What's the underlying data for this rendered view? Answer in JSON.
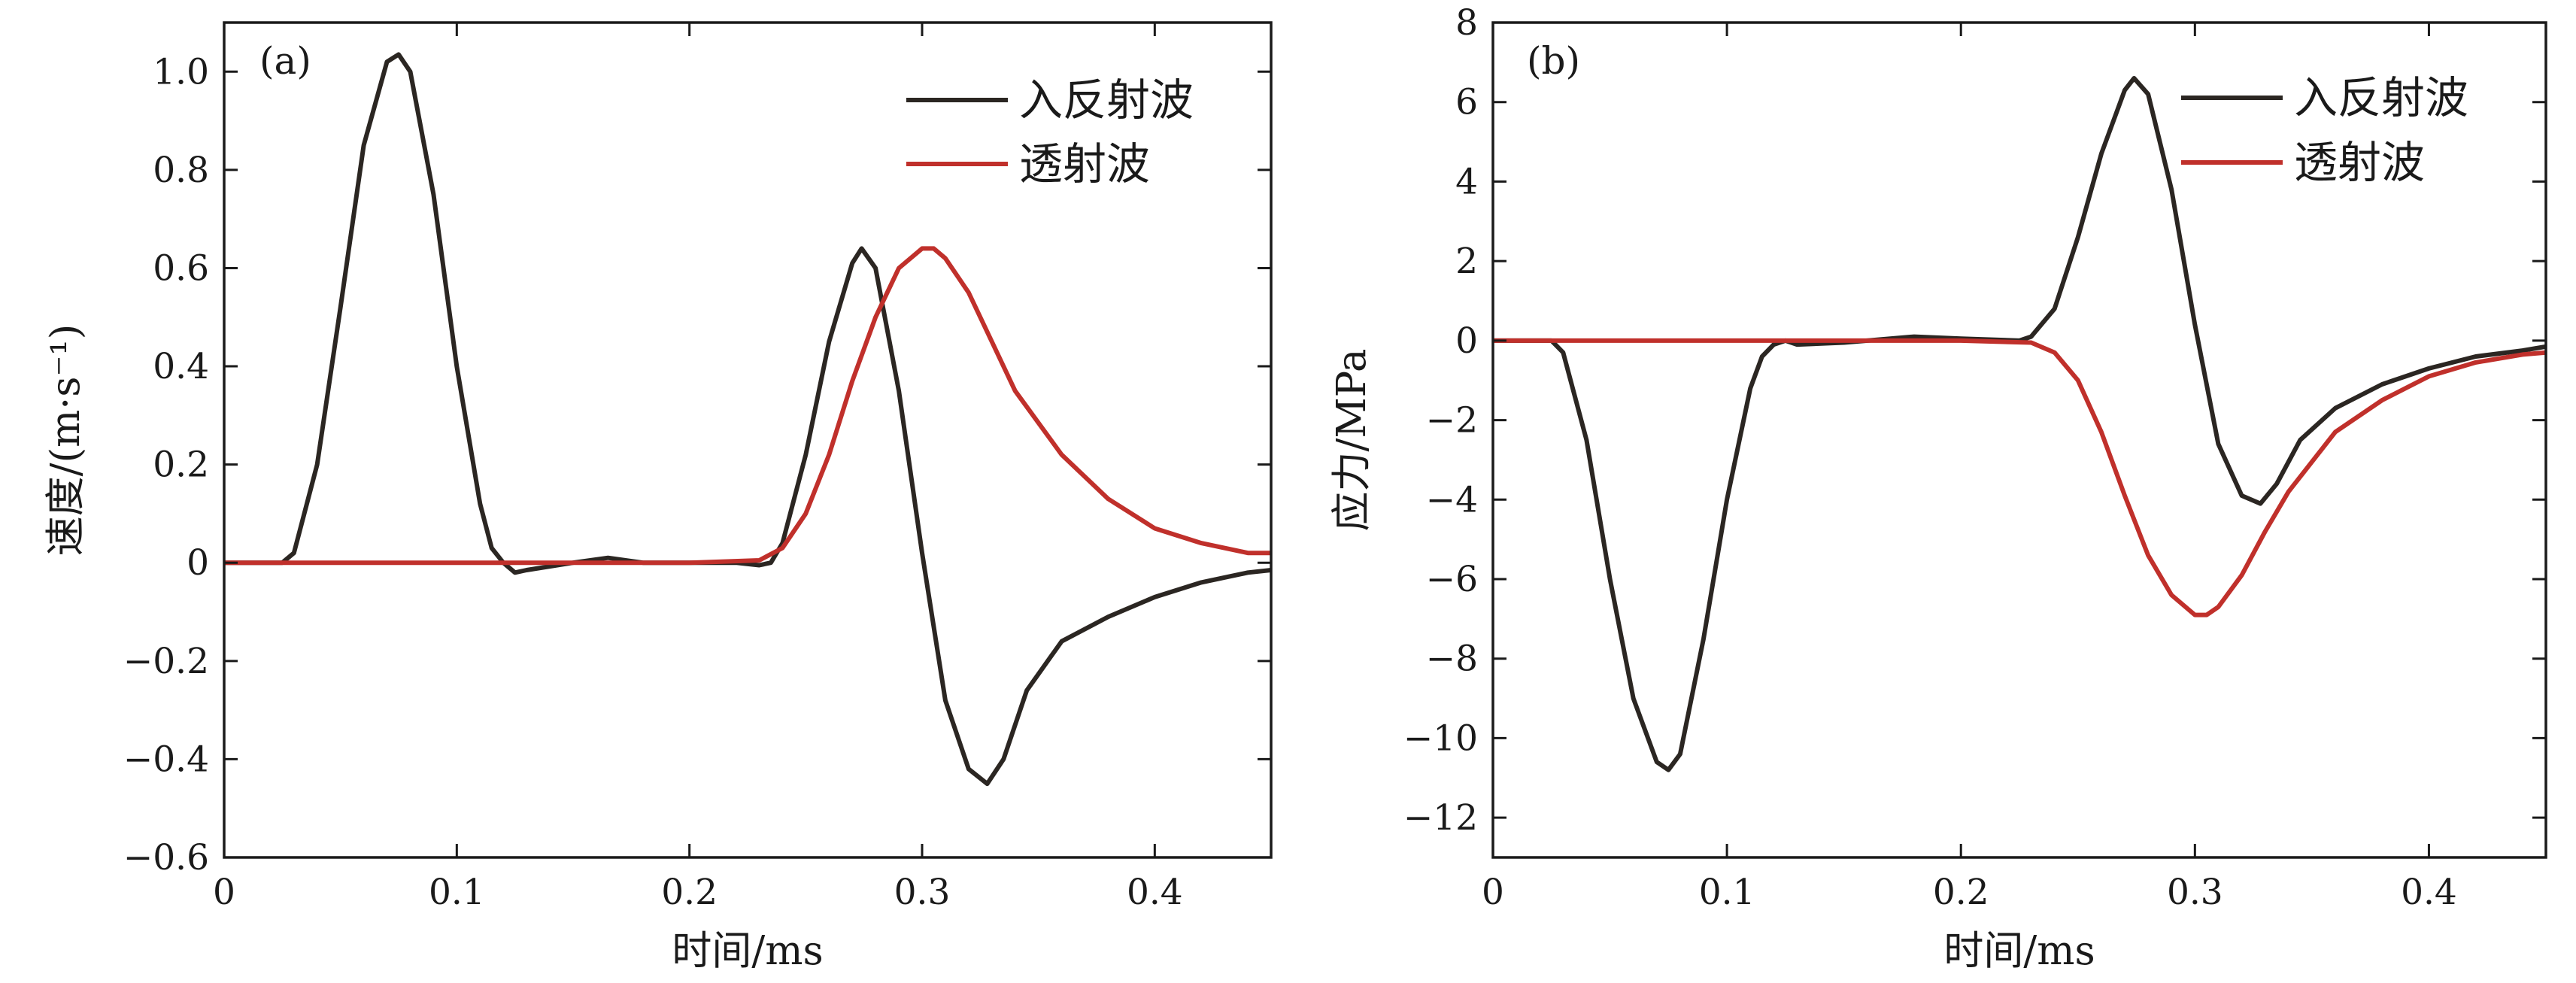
{
  "chart_data": [
    {
      "type": "line",
      "panel_label": "(a)",
      "xlabel": "时间/ms",
      "ylabel": "速度/(m·s⁻¹)",
      "xlim": [
        0,
        0.45
      ],
      "ylim": [
        -0.6,
        1.1
      ],
      "xticks": [
        0,
        0.1,
        0.2,
        0.3,
        0.4
      ],
      "xtick_labels": [
        "0",
        "0.1",
        "0.2",
        "0.3",
        "0.4"
      ],
      "yticks": [
        1.0,
        0.8,
        0.6,
        0.4,
        0.2,
        0,
        -0.2,
        -0.4,
        -0.6
      ],
      "ytick_labels": [
        "1.0",
        "0.8",
        "0.6",
        "0.4",
        "0.2",
        "0",
        "−0.2",
        "−0.4",
        "−0.6"
      ],
      "legend": {
        "position": "top-right",
        "entries": [
          "入反射波",
          "透射波"
        ]
      },
      "series": [
        {
          "name": "入反射波",
          "color": "#2b2622",
          "x": [
            0,
            0.025,
            0.03,
            0.04,
            0.05,
            0.06,
            0.07,
            0.075,
            0.08,
            0.09,
            0.1,
            0.11,
            0.115,
            0.12,
            0.125,
            0.13,
            0.15,
            0.165,
            0.18,
            0.2,
            0.22,
            0.23,
            0.235,
            0.24,
            0.25,
            0.26,
            0.27,
            0.274,
            0.28,
            0.29,
            0.3,
            0.31,
            0.32,
            0.328,
            0.335,
            0.345,
            0.36,
            0.38,
            0.4,
            0.42,
            0.44,
            0.45
          ],
          "y": [
            0,
            0,
            0.02,
            0.2,
            0.52,
            0.85,
            1.02,
            1.035,
            1.0,
            0.75,
            0.4,
            0.12,
            0.03,
            0.0,
            -0.02,
            -0.015,
            0.0,
            0.01,
            0.0,
            0.0,
            0.0,
            -0.005,
            0.0,
            0.04,
            0.22,
            0.45,
            0.61,
            0.64,
            0.6,
            0.35,
            0.02,
            -0.28,
            -0.42,
            -0.45,
            -0.4,
            -0.26,
            -0.16,
            -0.11,
            -0.07,
            -0.04,
            -0.02,
            -0.015
          ]
        },
        {
          "name": "透射波",
          "color": "#c0302b",
          "x": [
            0,
            0.2,
            0.23,
            0.24,
            0.25,
            0.26,
            0.27,
            0.28,
            0.29,
            0.3,
            0.305,
            0.31,
            0.32,
            0.33,
            0.34,
            0.36,
            0.38,
            0.4,
            0.42,
            0.44,
            0.45
          ],
          "y": [
            0,
            0,
            0.005,
            0.03,
            0.1,
            0.22,
            0.37,
            0.5,
            0.6,
            0.64,
            0.64,
            0.62,
            0.55,
            0.45,
            0.35,
            0.22,
            0.13,
            0.07,
            0.04,
            0.02,
            0.02
          ]
        }
      ]
    },
    {
      "type": "line",
      "panel_label": "(b)",
      "xlabel": "时间/ms",
      "ylabel": "应力/MPa",
      "xlim": [
        0,
        0.45
      ],
      "ylim": [
        -13,
        8
      ],
      "xticks": [
        0,
        0.1,
        0.2,
        0.3,
        0.4
      ],
      "xtick_labels": [
        "0",
        "0.1",
        "0.2",
        "0.3",
        "0.4"
      ],
      "yticks": [
        8,
        6,
        4,
        2,
        0,
        -2,
        -4,
        -6,
        -8,
        -10,
        -12
      ],
      "ytick_labels": [
        "8",
        "6",
        "4",
        "2",
        "0",
        "−2",
        "−4",
        "−6",
        "−8",
        "−10",
        "−12"
      ],
      "legend": {
        "position": "top-right",
        "entries": [
          "入反射波",
          "透射波"
        ]
      },
      "series": [
        {
          "name": "入反射波",
          "color": "#2b2622",
          "x": [
            0,
            0.025,
            0.03,
            0.04,
            0.05,
            0.06,
            0.07,
            0.075,
            0.08,
            0.09,
            0.1,
            0.11,
            0.115,
            0.12,
            0.125,
            0.13,
            0.15,
            0.18,
            0.2,
            0.225,
            0.23,
            0.24,
            0.25,
            0.26,
            0.27,
            0.274,
            0.28,
            0.29,
            0.3,
            0.31,
            0.32,
            0.328,
            0.335,
            0.345,
            0.36,
            0.38,
            0.4,
            0.42,
            0.44,
            0.45
          ],
          "y": [
            0,
            0,
            -0.3,
            -2.5,
            -6.0,
            -9.0,
            -10.6,
            -10.8,
            -10.4,
            -7.5,
            -4.0,
            -1.2,
            -0.4,
            -0.1,
            0.0,
            -0.1,
            -0.05,
            0.1,
            0.05,
            0.0,
            0.1,
            0.8,
            2.6,
            4.7,
            6.3,
            6.6,
            6.2,
            3.8,
            0.4,
            -2.6,
            -3.9,
            -4.1,
            -3.6,
            -2.5,
            -1.7,
            -1.1,
            -0.7,
            -0.4,
            -0.25,
            -0.15
          ]
        },
        {
          "name": "透射波",
          "color": "#c0302b",
          "x": [
            0,
            0.2,
            0.23,
            0.24,
            0.25,
            0.26,
            0.27,
            0.28,
            0.29,
            0.3,
            0.305,
            0.31,
            0.32,
            0.33,
            0.34,
            0.36,
            0.38,
            0.4,
            0.42,
            0.44,
            0.45
          ],
          "y": [
            0,
            0,
            -0.05,
            -0.3,
            -1.0,
            -2.3,
            -3.9,
            -5.4,
            -6.4,
            -6.9,
            -6.9,
            -6.7,
            -5.9,
            -4.8,
            -3.8,
            -2.3,
            -1.5,
            -0.9,
            -0.55,
            -0.35,
            -0.3
          ]
        }
      ]
    }
  ]
}
